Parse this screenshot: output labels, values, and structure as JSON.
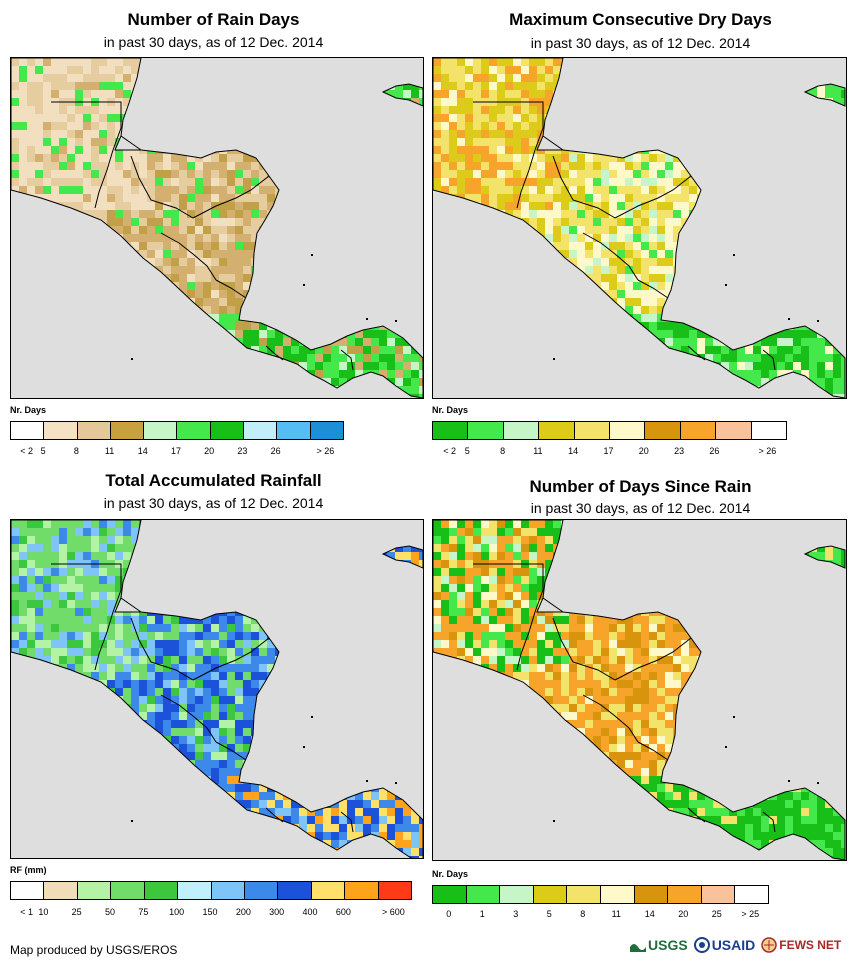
{
  "footer": {
    "credit": "Map produced by USGS/EROS"
  },
  "logos": {
    "usgs": "USGS",
    "usaid": "USAID",
    "fews": "FEWS NET"
  },
  "panels": [
    {
      "title": "Number of Rain Days",
      "subtitle": "in past 30 days, as of 12 Dec. 2014",
      "legend_label": "Nr. Days",
      "legend_colors": [
        "#ffffff",
        "#f5e2c4",
        "#e4c89a",
        "#c9a040",
        "#c6f6c8",
        "#45e84a",
        "#18bf18",
        "#c2eefa",
        "#56bcf4",
        "#1d8fd6"
      ],
      "legend_ticks": [
        "< 2",
        "5",
        "8",
        "11",
        "14",
        "17",
        "20",
        "23",
        "26",
        "> 26"
      ],
      "tick_mode": "boundary",
      "palette": [
        "#f2dfc0",
        "#e6cda0",
        "#d4b070",
        "#c2a048",
        "#c6f6c8",
        "#45e84a",
        "#18bf18"
      ],
      "weights": [
        [
          5,
          3,
          1,
          0,
          0,
          1,
          0
        ],
        [
          1,
          3,
          4,
          2,
          0,
          1,
          0
        ],
        [
          0,
          0,
          1,
          1,
          1,
          4,
          3
        ]
      ]
    },
    {
      "title": "Maximum Consecutive Dry Days",
      "subtitle": "in past 30 days, as of 12 Dec. 2014",
      "legend_label": "Nr. Days",
      "legend_colors": [
        "#18bf18",
        "#45e84a",
        "#c6f6c8",
        "#dccb19",
        "#f4e36a",
        "#fff8c9",
        "#d9940d",
        "#f7a42a",
        "#f9c29a",
        "#ffffff"
      ],
      "legend_ticks": [
        "< 2",
        "5",
        "8",
        "11",
        "14",
        "17",
        "20",
        "23",
        "26",
        "> 26"
      ],
      "tick_mode": "boundary",
      "palette": [
        "#f7a42a",
        "#dccb19",
        "#f4e36a",
        "#fff8c9",
        "#c6f6c8",
        "#45e84a",
        "#18bf18"
      ],
      "weights": [
        [
          3,
          4,
          3,
          1,
          0,
          0,
          0
        ],
        [
          0,
          3,
          3,
          4,
          1,
          1,
          0
        ],
        [
          0,
          0,
          0,
          1,
          1,
          4,
          3
        ]
      ]
    },
    {
      "title": "Total Accumulated Rainfall",
      "subtitle": "in past 30 days, as of 12 Dec. 2014",
      "legend_label": "RF (mm)",
      "legend_colors": [
        "#ffffff",
        "#f1dcb8",
        "#b4f3a6",
        "#71dc6a",
        "#3bc83f",
        "#bff0fb",
        "#7fc4f7",
        "#3c89e9",
        "#1c52d9",
        "#ffe16a",
        "#ffa21c",
        "#ff3a16"
      ],
      "legend_ticks": [
        "< 1",
        "10",
        "25",
        "50",
        "75",
        "100",
        "150",
        "200",
        "300",
        "400",
        "600",
        "> 600"
      ],
      "tick_mode": "boundary",
      "palette": [
        "#b4f3a6",
        "#71dc6a",
        "#3bc83f",
        "#7fc4f7",
        "#3c89e9",
        "#1c52d9",
        "#ffe16a",
        "#ffa21c"
      ],
      "weights": [
        [
          2,
          4,
          1,
          2,
          1,
          0,
          0,
          0
        ],
        [
          1,
          2,
          1,
          1,
          4,
          3,
          0,
          0
        ],
        [
          0,
          0,
          0,
          1,
          3,
          3,
          2,
          1
        ]
      ]
    },
    {
      "title": "Number of Days Since Rain",
      "subtitle": "in past 30 days, as of 12 Dec. 2014",
      "legend_label": "Nr. Days",
      "legend_colors": [
        "#18bf18",
        "#45e84a",
        "#c6f6c8",
        "#dccb19",
        "#f4e36a",
        "#fff8c9",
        "#d9940d",
        "#f7a42a",
        "#f9c29a",
        "#ffffff"
      ],
      "legend_ticks": [
        "0",
        "1",
        "3",
        "5",
        "8",
        "11",
        "14",
        "20",
        "25",
        "> 25"
      ],
      "tick_mode": "center",
      "palette": [
        "#f7a42a",
        "#d9940d",
        "#f4e36a",
        "#fff8c9",
        "#c6f6c8",
        "#45e84a",
        "#18bf18"
      ],
      "weights": [
        [
          3,
          1,
          2,
          1,
          1,
          1,
          2
        ],
        [
          4,
          2,
          2,
          1,
          0,
          0,
          0
        ],
        [
          0,
          0,
          1,
          0,
          0,
          3,
          5
        ]
      ]
    }
  ]
}
